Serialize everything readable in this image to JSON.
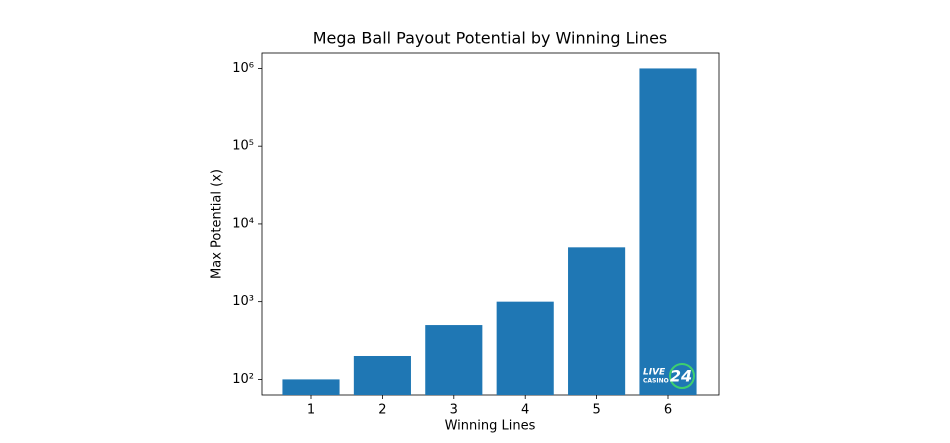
{
  "chart_data": {
    "type": "bar",
    "title": "Mega Ball Payout Potential by Winning Lines",
    "x_label": "Winning Lines",
    "y_label": "Max Potential (x)",
    "categories": [
      "1",
      "2",
      "3",
      "4",
      "5",
      "6"
    ],
    "values": [
      100,
      200,
      500,
      1000,
      5000,
      1000000
    ],
    "color": "#1f77b4",
    "y_scale": "log",
    "ylim": [
      63,
      1580000
    ],
    "yticks": [
      {
        "value": 100,
        "label": "10²"
      },
      {
        "value": 1000,
        "label": "10³"
      },
      {
        "value": 10000,
        "label": "10⁴"
      },
      {
        "value": 100000,
        "label": "10⁵"
      },
      {
        "value": 1000000,
        "label": "10⁶"
      }
    ],
    "grid": false,
    "watermark": {
      "line1": "LIVE",
      "line2": "CASINO",
      "number": "24"
    }
  }
}
